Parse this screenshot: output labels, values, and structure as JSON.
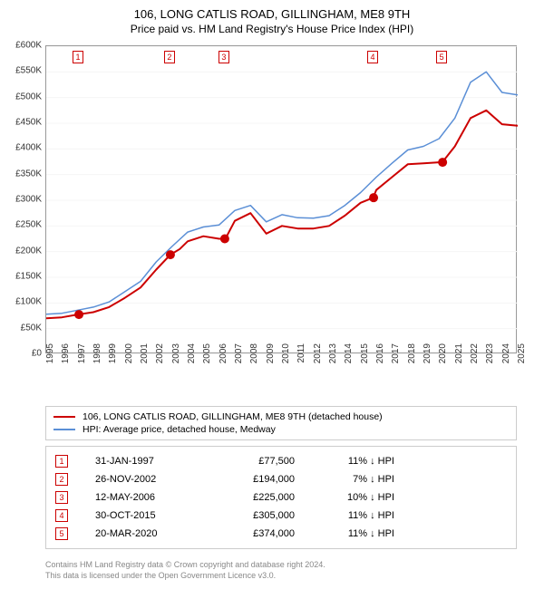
{
  "title": "106, LONG CATLIS ROAD, GILLINGHAM, ME8 9TH",
  "subtitle": "Price paid vs. HM Land Registry's House Price Index (HPI)",
  "chart": {
    "type": "line",
    "background_color": "#ffffff",
    "grid_color": "#e0e0e0",
    "border_color": "#999999",
    "x_axis": {
      "min": 1995,
      "max": 2025,
      "tick_step": 1,
      "labels": [
        "1995",
        "1996",
        "1997",
        "1998",
        "1999",
        "2000",
        "2001",
        "2002",
        "2003",
        "2004",
        "2005",
        "2006",
        "2007",
        "2008",
        "2009",
        "2010",
        "2011",
        "2012",
        "2013",
        "2014",
        "2015",
        "2016",
        "2017",
        "2018",
        "2019",
        "2020",
        "2021",
        "2022",
        "2023",
        "2024",
        "2025"
      ]
    },
    "y_axis": {
      "min": 0,
      "max": 600000,
      "tick_step": 50000,
      "unit_prefix": "£",
      "labels": [
        "£0",
        "£50K",
        "£100K",
        "£150K",
        "£200K",
        "£250K",
        "£300K",
        "£350K",
        "£400K",
        "£450K",
        "£500K",
        "£550K",
        "£600K"
      ]
    },
    "series": [
      {
        "name": "property",
        "label": "106, LONG CATLIS ROAD, GILLINGHAM, ME8 9TH (detached house)",
        "color": "#cc0000",
        "line_width": 2,
        "points": [
          [
            1995,
            70000
          ],
          [
            1996,
            72000
          ],
          [
            1997,
            77500
          ],
          [
            1998,
            82000
          ],
          [
            1999,
            92000
          ],
          [
            2000,
            110000
          ],
          [
            2001,
            130000
          ],
          [
            2002,
            165000
          ],
          [
            2002.9,
            194000
          ],
          [
            2003.5,
            205000
          ],
          [
            2004,
            220000
          ],
          [
            2005,
            230000
          ],
          [
            2006,
            225000
          ],
          [
            2006.4,
            225000
          ],
          [
            2007,
            260000
          ],
          [
            2008,
            275000
          ],
          [
            2009,
            235000
          ],
          [
            2010,
            250000
          ],
          [
            2011,
            245000
          ],
          [
            2012,
            245000
          ],
          [
            2013,
            250000
          ],
          [
            2014,
            270000
          ],
          [
            2015,
            295000
          ],
          [
            2015.8,
            305000
          ],
          [
            2016,
            320000
          ],
          [
            2017,
            345000
          ],
          [
            2018,
            370000
          ],
          [
            2019,
            372000
          ],
          [
            2020,
            374000
          ],
          [
            2020.2,
            374000
          ],
          [
            2021,
            405000
          ],
          [
            2022,
            460000
          ],
          [
            2023,
            475000
          ],
          [
            2024,
            448000
          ],
          [
            2025,
            445000
          ]
        ],
        "sale_points": [
          {
            "x": 1997.08,
            "y": 77500
          },
          {
            "x": 2002.9,
            "y": 194000
          },
          {
            "x": 2006.36,
            "y": 225000
          },
          {
            "x": 2015.83,
            "y": 305000
          },
          {
            "x": 2020.22,
            "y": 374000
          }
        ],
        "marker_color": "#cc0000",
        "marker_size": 5
      },
      {
        "name": "hpi",
        "label": "HPI: Average price, detached house, Medway",
        "color": "#5b8fd6",
        "line_width": 1.5,
        "points": [
          [
            1995,
            78000
          ],
          [
            1996,
            80000
          ],
          [
            1997,
            86000
          ],
          [
            1998,
            92000
          ],
          [
            1999,
            102000
          ],
          [
            2000,
            122000
          ],
          [
            2001,
            142000
          ],
          [
            2002,
            180000
          ],
          [
            2003,
            210000
          ],
          [
            2004,
            238000
          ],
          [
            2005,
            248000
          ],
          [
            2006,
            252000
          ],
          [
            2007,
            280000
          ],
          [
            2008,
            290000
          ],
          [
            2009,
            258000
          ],
          [
            2010,
            272000
          ],
          [
            2011,
            266000
          ],
          [
            2012,
            265000
          ],
          [
            2013,
            270000
          ],
          [
            2014,
            290000
          ],
          [
            2015,
            315000
          ],
          [
            2016,
            345000
          ],
          [
            2017,
            372000
          ],
          [
            2018,
            398000
          ],
          [
            2019,
            405000
          ],
          [
            2020,
            420000
          ],
          [
            2021,
            460000
          ],
          [
            2022,
            530000
          ],
          [
            2023,
            550000
          ],
          [
            2024,
            510000
          ],
          [
            2025,
            505000
          ]
        ]
      }
    ],
    "annotations": [
      {
        "n": "1",
        "x": 1997.08
      },
      {
        "n": "2",
        "x": 2002.9
      },
      {
        "n": "3",
        "x": 2006.36
      },
      {
        "n": "4",
        "x": 2015.83
      },
      {
        "n": "5",
        "x": 2020.22
      }
    ]
  },
  "legend": {
    "items": [
      {
        "color": "#cc0000",
        "width": 2,
        "label": "106, LONG CATLIS ROAD, GILLINGHAM, ME8 9TH (detached house)"
      },
      {
        "color": "#5b8fd6",
        "width": 1.5,
        "label": "HPI: Average price, detached house, Medway"
      }
    ]
  },
  "sales": [
    {
      "n": "1",
      "date": "31-JAN-1997",
      "price": "£77,500",
      "diff": "11% ↓ HPI"
    },
    {
      "n": "2",
      "date": "26-NOV-2002",
      "price": "£194,000",
      "diff": "7% ↓ HPI"
    },
    {
      "n": "3",
      "date": "12-MAY-2006",
      "price": "£225,000",
      "diff": "10% ↓ HPI"
    },
    {
      "n": "4",
      "date": "30-OCT-2015",
      "price": "£305,000",
      "diff": "11% ↓ HPI"
    },
    {
      "n": "5",
      "date": "20-MAR-2020",
      "price": "£374,000",
      "diff": "11% ↓ HPI"
    }
  ],
  "footer": {
    "line1": "Contains HM Land Registry data © Crown copyright and database right 2024.",
    "line2": "This data is licensed under the Open Government Licence v3.0."
  },
  "colors": {
    "marker_border": "#cc0000",
    "text": "#333333",
    "footer_text": "#888888"
  }
}
